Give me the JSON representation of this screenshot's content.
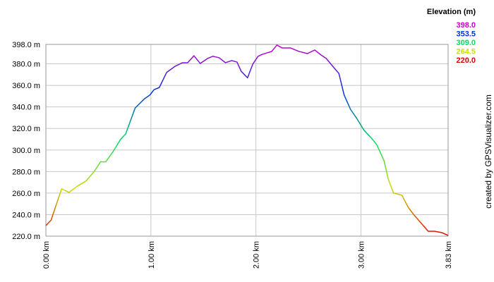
{
  "chart_data": {
    "type": "line",
    "x": [
      0,
      0.05,
      0.1,
      0.15,
      0.22,
      0.3,
      0.38,
      0.46,
      0.52,
      0.57,
      0.64,
      0.71,
      0.76,
      0.85,
      0.94,
      0.99,
      1.03,
      1.08,
      1.15,
      1.23,
      1.3,
      1.35,
      1.41,
      1.47,
      1.54,
      1.59,
      1.65,
      1.71,
      1.77,
      1.82,
      1.86,
      1.92,
      1.97,
      2.02,
      2.06,
      2.15,
      2.2,
      2.25,
      2.33,
      2.41,
      2.49,
      2.56,
      2.62,
      2.67,
      2.72,
      2.79,
      2.84,
      2.9,
      2.96,
      3.03,
      3.1,
      3.15,
      3.22,
      3.26,
      3.31,
      3.39,
      3.45,
      3.5,
      3.57,
      3.64,
      3.7,
      3.77,
      3.83
    ],
    "series": [
      {
        "values": [
          229.8,
          235,
          249.5,
          264,
          260.6,
          266.5,
          271,
          280,
          289,
          289,
          298.5,
          309.7,
          315,
          339,
          347.6,
          351,
          356,
          358,
          372,
          377.7,
          381,
          381,
          387.5,
          380.3,
          385,
          387,
          385.6,
          381,
          383,
          381.6,
          373,
          367,
          379.7,
          386.9,
          388.8,
          391.5,
          397.4,
          394.7,
          394.7,
          391.5,
          389.5,
          392.8,
          388.2,
          384.9,
          379,
          371,
          351,
          337.8,
          329.3,
          318.2,
          311,
          305,
          290,
          273,
          260,
          258,
          246.8,
          240.3,
          232.4,
          224.6,
          224.6,
          223.3,
          220.7
        ]
      }
    ],
    "xlim": [
      0,
      3.83
    ],
    "xticks": [
      {
        "value": 0,
        "label": "0.00 km"
      },
      {
        "value": 1,
        "label": "1.00 km"
      },
      {
        "value": 2,
        "label": "2.00 km"
      },
      {
        "value": 3,
        "label": "3.00 km"
      },
      {
        "value": 3.83,
        "label": "3.83 km"
      }
    ],
    "ylim": [
      220,
      398
    ],
    "yticks": [
      {
        "value": 220,
        "label": "220.0 m"
      },
      {
        "value": 240,
        "label": "240.0 m"
      },
      {
        "value": 260,
        "label": "260.0 m"
      },
      {
        "value": 280,
        "label": "280.0 m"
      },
      {
        "value": 300,
        "label": "300.0 m"
      },
      {
        "value": 320,
        "label": "320.0 m"
      },
      {
        "value": 340,
        "label": "340.0 m"
      },
      {
        "value": 360,
        "label": "360.0 m"
      },
      {
        "value": 380,
        "label": "380.0 m"
      },
      {
        "value": 398,
        "label": "398.0 m"
      }
    ],
    "grid": true,
    "color_scale_title": "Elevation (m)",
    "color_scale": [
      {
        "value": 398,
        "label": "398.0",
        "color": "#cc00cc"
      },
      {
        "value": 353.5,
        "label": "353.5",
        "color": "#0033dd"
      },
      {
        "value": 309,
        "label": "309.0",
        "color": "#00dd66"
      },
      {
        "value": 264.5,
        "label": "264.5",
        "color": "#ccdd00"
      },
      {
        "value": 220,
        "label": "220.0",
        "color": "#dd0000"
      }
    ],
    "credit": "created by GPSVisualizer.com"
  }
}
